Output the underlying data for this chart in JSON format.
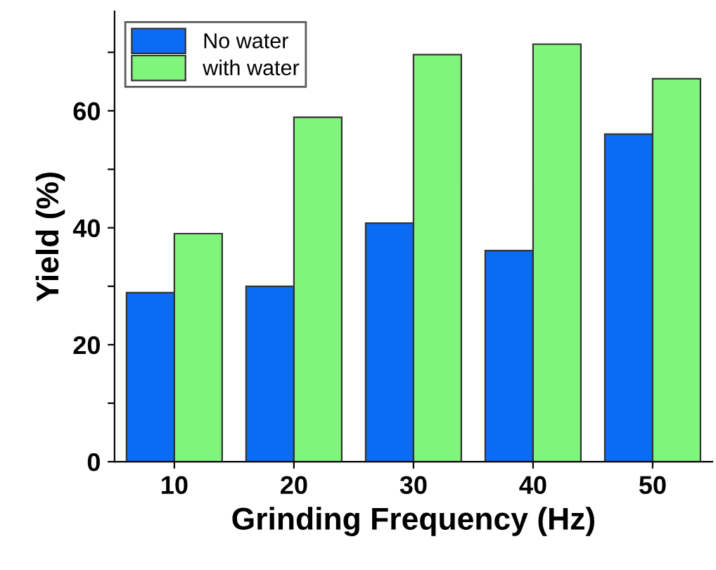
{
  "chart_data": {
    "type": "bar",
    "xlabel": "Grinding Frequency (Hz)",
    "ylabel": "Yield (%)",
    "categories": [
      "10",
      "20",
      "30",
      "40",
      "50"
    ],
    "series": [
      {
        "name": "No water",
        "color": "#0a6cf2",
        "values": [
          28.9,
          30.0,
          40.8,
          36.1,
          56.0
        ]
      },
      {
        "name": "with water",
        "color": "#80f57c",
        "values": [
          39.0,
          58.9,
          69.6,
          71.4,
          65.5
        ]
      }
    ],
    "ylim": [
      0,
      77
    ],
    "yticks": [
      0,
      {
        "value": 10,
        "label": null
      },
      20,
      {
        "value": 30,
        "label": null
      },
      40,
      {
        "value": 50,
        "label": null
      },
      60,
      {
        "value": 70,
        "label": null
      }
    ],
    "grid": false,
    "legend": "top left"
  }
}
